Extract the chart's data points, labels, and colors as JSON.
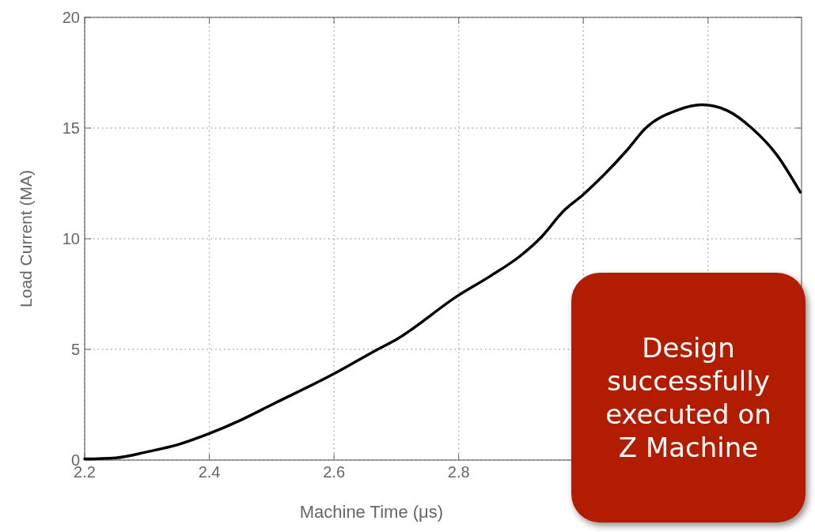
{
  "chart_data": {
    "type": "line",
    "xlabel": "Machine Time (μs)",
    "ylabel": "Load Current (MA)",
    "x": [
      2.2,
      2.25,
      2.3,
      2.35,
      2.4,
      2.45,
      2.5,
      2.6,
      2.67,
      2.7,
      2.8,
      2.85,
      2.9,
      2.93,
      2.97,
      3.0,
      3.03,
      3.07,
      3.1,
      3.15,
      3.19,
      3.23,
      3.27,
      3.31,
      3.348
    ],
    "series": [
      {
        "color": "#000000",
        "values": [
          0.05,
          0.1,
          0.37,
          0.7,
          1.2,
          1.8,
          2.5,
          3.9,
          5.0,
          5.45,
          7.45,
          8.3,
          9.25,
          10.0,
          11.3,
          12.0,
          12.8,
          14.0,
          15.0,
          15.8,
          16.05,
          15.8,
          15.0,
          13.8,
          12.1
        ]
      }
    ],
    "xlim": [
      2.2,
      3.35
    ],
    "ylim": [
      0,
      20
    ],
    "xticks": [
      2.2,
      2.4,
      2.6,
      2.8,
      {
        "value": 3.0,
        "label": null
      },
      {
        "value": 3.2,
        "label": null
      }
    ],
    "yticks": [
      0,
      5,
      10,
      15,
      20
    ],
    "grid": true,
    "marker": "none",
    "line_style": "solid",
    "annotations": [
      "Design successfully executed on Z Machine"
    ]
  }
}
